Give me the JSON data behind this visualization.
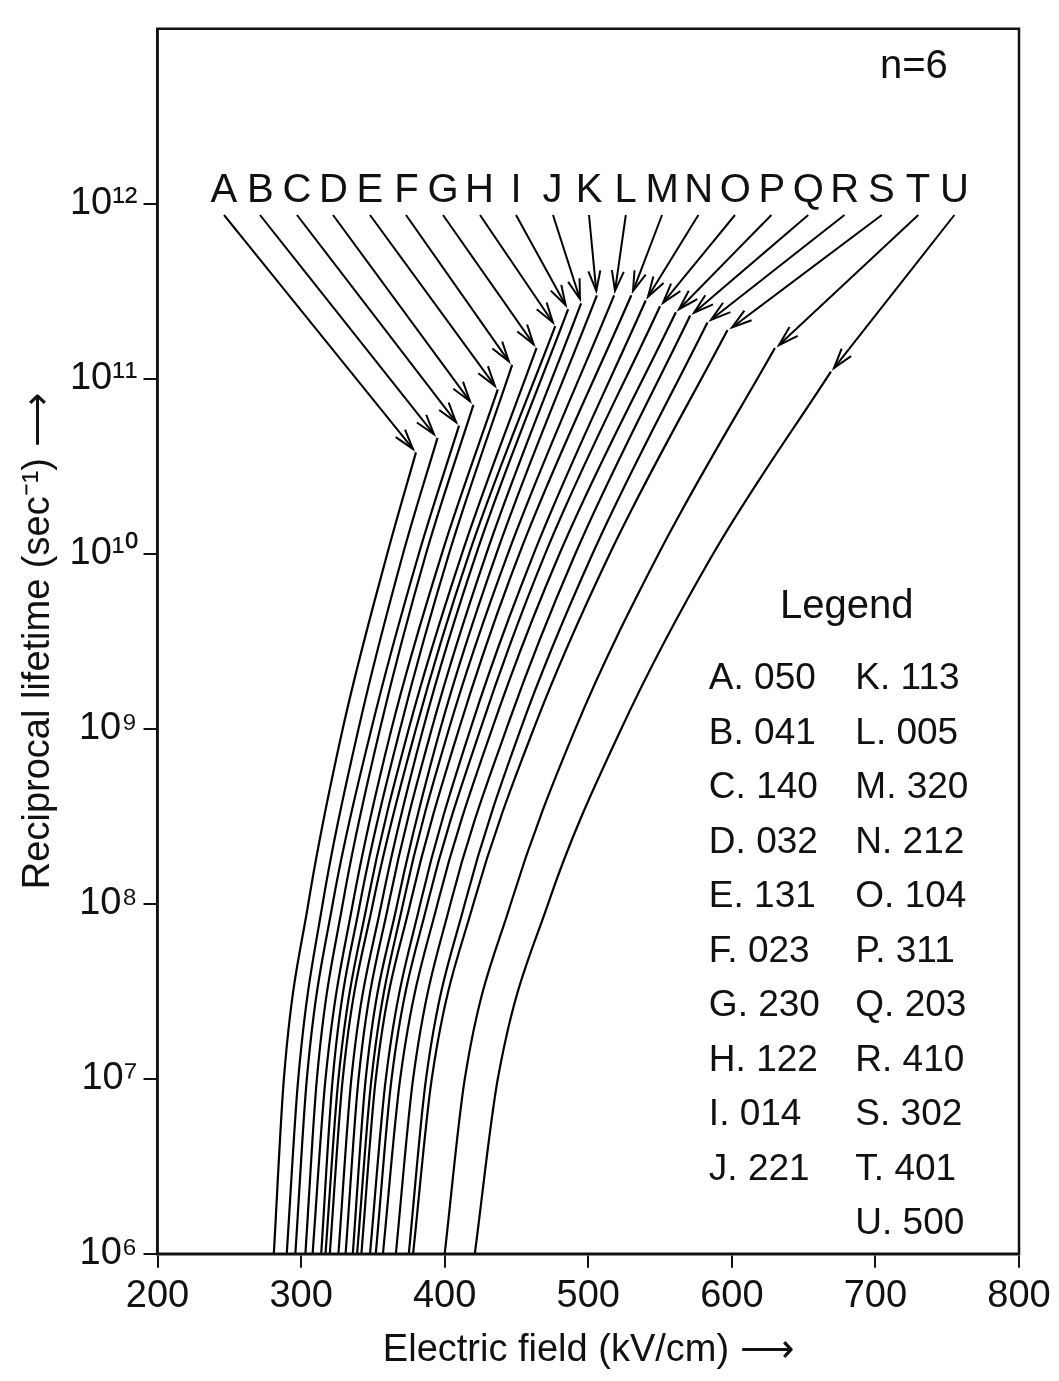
{
  "chart_data": {
    "type": "line",
    "title": "n=6",
    "xlabel": "Electric field (kV/cm) ⟶",
    "ylabel": "Reciprocal lifetime (sec⁻¹) ⟶",
    "legend_title": "Legend",
    "annotations": [
      "A. 050",
      "B. 041",
      "C. 140",
      "D. 032",
      "E. 131",
      "F. 023",
      "G. 230",
      "H. 122",
      "I. 014",
      "J. 221",
      "K. 113",
      "L. 005",
      "M. 320",
      "N. 212",
      "O. 104",
      "P. 311",
      "Q. 203",
      "R. 410",
      "S. 302",
      "T. 401",
      "U. 500"
    ],
    "log": "y",
    "grid": false,
    "legend": false,
    "xlim": [
      200,
      800
    ],
    "xticks": [
      200,
      300,
      400,
      500,
      600,
      700,
      800
    ],
    "ylim": [
      1000000,
      10000000000000
    ],
    "yticks": [
      {
        "value": 1000000,
        "label": "10⁶"
      },
      {
        "value": 10000000,
        "label": "10⁷"
      },
      {
        "value": 100000000,
        "label": "10⁸"
      },
      {
        "value": 1000000000,
        "label": "10⁹"
      },
      {
        "value": 10000000000,
        "label": "10¹⁰"
      },
      {
        "value": 100000000000,
        "label": "10¹¹"
      },
      {
        "value": 1000000000000,
        "label": "10¹²"
      }
    ],
    "series": [
      {
        "name": "A",
        "color": "#000000",
        "x": [
          281,
          288,
          305,
          329,
          360,
          380
        ],
        "values": [
          1000000,
          10000000,
          100000000,
          1000000000,
          10000000000,
          38000000000
        ]
      },
      {
        "name": "B",
        "color": "#000000",
        "x": [
          290,
          298,
          315,
          340,
          371,
          395
        ],
        "values": [
          1000000,
          10000000,
          100000000,
          1000000000,
          10000000000,
          46000000000
        ]
      },
      {
        "name": "C",
        "color": "#000000",
        "x": [
          296,
          304,
          322,
          349,
          382,
          410
        ],
        "values": [
          1000000,
          10000000,
          100000000,
          1000000000,
          10000000000,
          54000000000
        ]
      },
      {
        "name": "D",
        "color": "#000000",
        "x": [
          303,
          311,
          329,
          355,
          387,
          420
        ],
        "values": [
          1000000,
          10000000,
          100000000,
          1000000000,
          10000000000,
          71000000000
        ]
      },
      {
        "name": "E",
        "color": "#000000",
        "x": [
          308,
          317,
          336,
          363,
          398,
          437
        ],
        "values": [
          1000000,
          10000000,
          100000000,
          1000000000,
          10000000000,
          87000000000
        ]
      },
      {
        "name": "F",
        "color": "#000000",
        "x": [
          314,
          322,
          341,
          369,
          403,
          447
        ],
        "values": [
          1000000,
          10000000,
          100000000,
          1000000000,
          10000000000,
          120000000000
        ]
      },
      {
        "name": "G",
        "color": "#000000",
        "x": [
          317,
          326,
          346,
          375,
          412,
          464
        ],
        "values": [
          1000000,
          10000000,
          100000000,
          1000000000,
          10000000000,
          150000000000
        ]
      },
      {
        "name": "H",
        "color": "#000000",
        "x": [
          320,
          329,
          350,
          380,
          417,
          477
        ],
        "values": [
          1000000,
          10000000,
          100000000,
          1000000000,
          10000000000,
          200000000000
        ]
      },
      {
        "name": "I",
        "color": "#000000",
        "x": [
          326,
          335,
          356,
          385,
          422,
          486
        ],
        "values": [
          1000000,
          10000000,
          100000000,
          1000000000,
          10000000000,
          250000000000
        ]
      },
      {
        "name": "J",
        "color": "#000000",
        "x": [
          331,
          340,
          361,
          391,
          429,
          495
        ],
        "values": [
          1000000,
          10000000,
          100000000,
          1000000000,
          10000000000,
          270000000000
        ]
      },
      {
        "name": "K",
        "color": "#000000",
        "x": [
          336,
          345,
          367,
          397,
          436,
          506
        ],
        "values": [
          1000000,
          10000000,
          100000000,
          1000000000,
          10000000000,
          300000000000
        ]
      },
      {
        "name": "L",
        "color": "#000000",
        "x": [
          339,
          349,
          371,
          403,
          444,
          518
        ],
        "values": [
          1000000,
          10000000,
          100000000,
          1000000000,
          10000000000,
          300000000000
        ]
      },
      {
        "name": "M",
        "color": "#000000",
        "x": [
          342,
          352,
          376,
          410,
          452,
          530
        ],
        "values": [
          1000000,
          10000000,
          100000000,
          1000000000,
          10000000000,
          300000000000
        ]
      },
      {
        "name": "N",
        "color": "#000000",
        "x": [
          348,
          359,
          383,
          418,
          462,
          540
        ],
        "values": [
          1000000,
          10000000,
          100000000,
          1000000000,
          10000000000,
          280000000000
        ]
      },
      {
        "name": "O",
        "color": "#000000",
        "x": [
          352,
          363,
          388,
          425,
          470,
          550
        ],
        "values": [
          1000000,
          10000000,
          100000000,
          1000000000,
          10000000000,
          260000000000
        ]
      },
      {
        "name": "P",
        "color": "#000000",
        "x": [
          357,
          369,
          395,
          433,
          480,
          561
        ],
        "values": [
          1000000,
          10000000,
          100000000,
          1000000000,
          10000000000,
          240000000000
        ]
      },
      {
        "name": "Q",
        "color": "#000000",
        "x": [
          366,
          378,
          404,
          443,
          491,
          571
        ],
        "values": [
          1000000,
          10000000,
          100000000,
          1000000000,
          10000000000,
          230000000000
        ]
      },
      {
        "name": "R",
        "color": "#000000",
        "x": [
          375,
          387,
          414,
          453,
          503,
          583
        ],
        "values": [
          1000000,
          10000000,
          100000000,
          1000000000,
          10000000000,
          210000000000
        ]
      },
      {
        "name": "S",
        "color": "#000000",
        "x": [
          378,
          391,
          420,
          462,
          515,
          597
        ],
        "values": [
          1000000,
          10000000,
          100000000,
          1000000000,
          10000000000,
          190000000000
        ]
      },
      {
        "name": "T",
        "color": "#000000",
        "x": [
          400,
          414,
          446,
          491,
          549,
          630
        ],
        "values": [
          1000000,
          10000000,
          100000000,
          1000000000,
          10000000000,
          150000000000
        ]
      },
      {
        "name": "U",
        "color": "#000000",
        "x": [
          421,
          437,
          472,
          523,
          587,
          669
        ],
        "values": [
          1000000,
          10000000,
          100000000,
          1000000000,
          10000000000,
          110000000000
        ]
      }
    ]
  }
}
